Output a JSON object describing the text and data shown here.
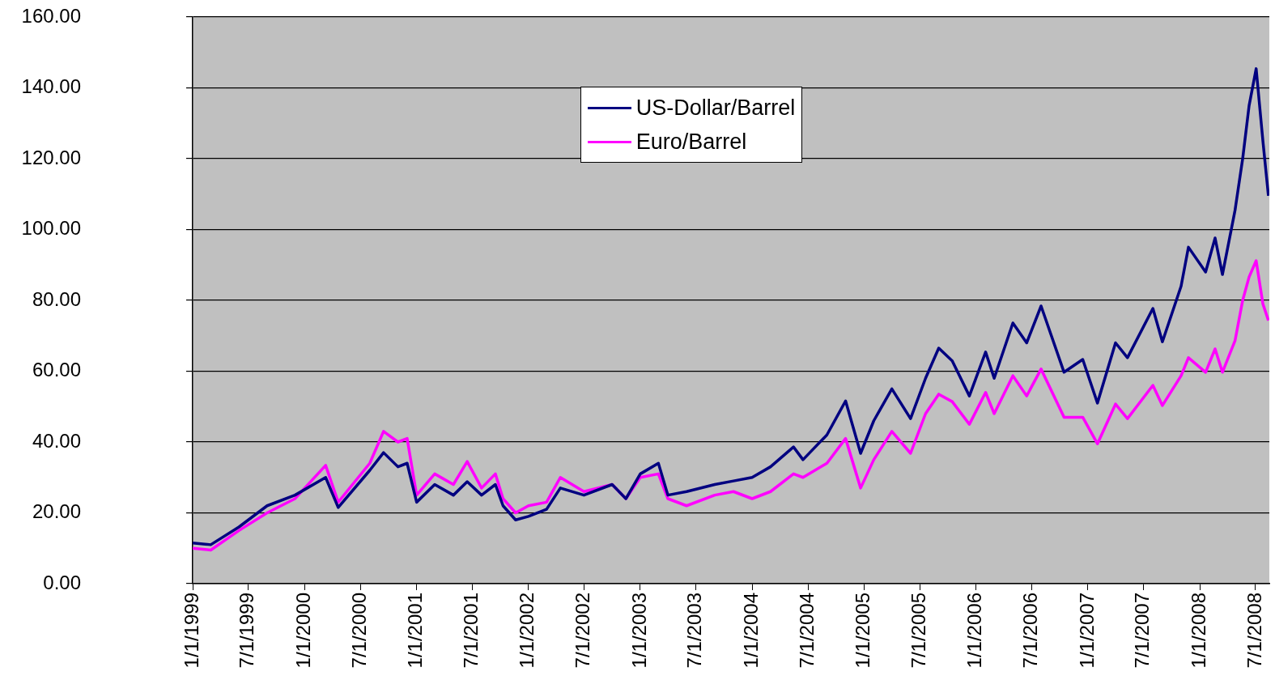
{
  "chart_data": {
    "type": "line",
    "x": [
      "1999-01-01",
      "1999-03-01",
      "1999-06-01",
      "1999-09-01",
      "1999-12-01",
      "2000-03-10",
      "2000-04-20",
      "2000-08-01",
      "2000-09-15",
      "2000-11-01",
      "2000-12-01",
      "2001-01-01",
      "2001-03-01",
      "2001-05-01",
      "2001-06-15",
      "2001-08-01",
      "2001-09-15",
      "2001-10-10",
      "2001-11-20",
      "2002-01-01",
      "2002-03-01",
      "2002-04-15",
      "2002-07-01",
      "2002-10-01",
      "2002-11-15",
      "2003-01-01",
      "2003-03-01",
      "2003-04-01",
      "2003-06-01",
      "2003-09-01",
      "2003-11-01",
      "2004-01-01",
      "2004-03-01",
      "2004-05-15",
      "2004-06-15",
      "2004-09-01",
      "2004-11-01",
      "2004-12-20",
      "2005-02-01",
      "2005-04-01",
      "2005-06-01",
      "2005-07-20",
      "2005-09-01",
      "2005-10-15",
      "2005-12-10",
      "2006-02-01",
      "2006-03-01",
      "2006-05-01",
      "2006-06-15",
      "2006-08-01",
      "2006-10-15",
      "2006-12-15",
      "2007-02-01",
      "2007-04-01",
      "2007-05-10",
      "2007-08-01",
      "2007-09-01",
      "2007-11-01",
      "2007-11-25",
      "2008-01-20",
      "2008-02-20",
      "2008-03-15",
      "2008-04-25",
      "2008-05-20",
      "2008-06-10",
      "2008-07-03",
      "2008-07-25",
      "2008-08-12"
    ],
    "series": [
      {
        "name": "US-Dollar/Barrel",
        "color": "#000080",
        "values": [
          11.5,
          11,
          16,
          22,
          25,
          30,
          21.5,
          32,
          37,
          33,
          34,
          23,
          28,
          25,
          28.8,
          25,
          28,
          22,
          18,
          19,
          21,
          27,
          25,
          28,
          24,
          31,
          34,
          25,
          26,
          28,
          29,
          30,
          33,
          38.6,
          35,
          42,
          51.6,
          36.8,
          46,
          55,
          46.6,
          58,
          66.5,
          62.9,
          53,
          65.4,
          58,
          73.6,
          68,
          78.4,
          59.7,
          63.3,
          51,
          68,
          63.8,
          77.7,
          68.3,
          84,
          95,
          88,
          97.6,
          87.3,
          105.4,
          120,
          135,
          145.4,
          125,
          109.5
        ]
      },
      {
        "name": "Euro/Barrel",
        "color": "#ff00ff",
        "values": [
          10,
          9.5,
          15,
          20,
          24,
          33.4,
          23,
          34,
          43,
          40,
          41,
          25,
          31,
          28,
          34.5,
          27,
          31,
          24,
          20,
          22,
          23,
          30,
          26,
          28,
          24,
          30,
          31,
          24,
          22,
          25,
          26,
          24,
          26,
          31,
          30,
          34,
          41,
          27,
          35,
          43,
          36.8,
          48,
          53.5,
          51.4,
          45,
          54,
          48,
          58.7,
          53,
          60.6,
          47,
          47,
          39.5,
          50.7,
          46.6,
          56,
          50.3,
          58.7,
          63.8,
          59.7,
          66.3,
          59.7,
          68.6,
          80,
          86.6,
          91.2,
          79,
          74.3
        ]
      }
    ],
    "xlim": [
      "1999-01-01",
      "2008-08-15"
    ],
    "xticks": [
      {
        "value": "1999-01-01",
        "label": "1/1/1999"
      },
      {
        "value": "1999-07-01",
        "label": "7/1/1999"
      },
      {
        "value": "2000-01-01",
        "label": "1/1/2000"
      },
      {
        "value": "2000-07-01",
        "label": "7/1/2000"
      },
      {
        "value": "2001-01-01",
        "label": "1/1/2001"
      },
      {
        "value": "2001-07-01",
        "label": "7/1/2001"
      },
      {
        "value": "2002-01-01",
        "label": "1/1/2002"
      },
      {
        "value": "2002-07-01",
        "label": "7/1/2002"
      },
      {
        "value": "2003-01-01",
        "label": "1/1/2003"
      },
      {
        "value": "2003-07-01",
        "label": "7/1/2003"
      },
      {
        "value": "2004-01-01",
        "label": "1/1/2004"
      },
      {
        "value": "2004-07-01",
        "label": "7/1/2004"
      },
      {
        "value": "2005-01-01",
        "label": "1/1/2005"
      },
      {
        "value": "2005-07-01",
        "label": "7/1/2005"
      },
      {
        "value": "2006-01-01",
        "label": "1/1/2006"
      },
      {
        "value": "2006-07-01",
        "label": "7/1/2006"
      },
      {
        "value": "2007-01-01",
        "label": "1/1/2007"
      },
      {
        "value": "2007-07-01",
        "label": "7/1/2007"
      },
      {
        "value": "2008-01-01",
        "label": "1/1/2008"
      },
      {
        "value": "2008-07-01",
        "label": "7/1/2008"
      }
    ],
    "ylim": [
      0,
      160
    ],
    "yticks": [
      {
        "value": 0,
        "label": "0.00"
      },
      {
        "value": 20,
        "label": "20.00"
      },
      {
        "value": 40,
        "label": "40.00"
      },
      {
        "value": 60,
        "label": "60.00"
      },
      {
        "value": 80,
        "label": "80.00"
      },
      {
        "value": 100,
        "label": "100.00"
      },
      {
        "value": 120,
        "label": "120.00"
      },
      {
        "value": 140,
        "label": "140.00"
      },
      {
        "value": 160,
        "label": "160.00"
      }
    ],
    "grid": "y",
    "legend": "top",
    "marker": "none",
    "line_style": "solid"
  }
}
